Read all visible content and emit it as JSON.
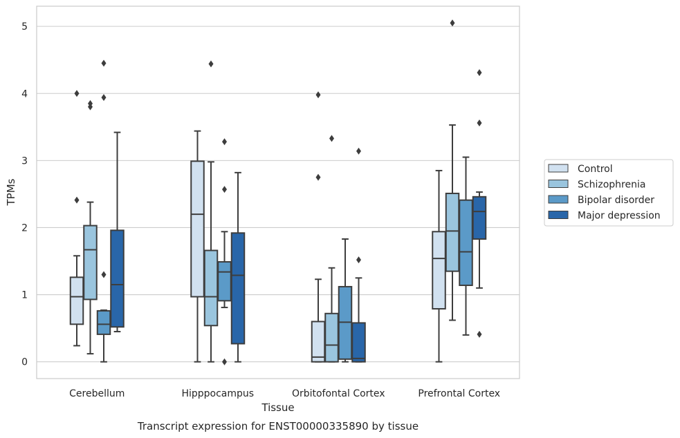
{
  "chart_data": {
    "type": "box",
    "title": "",
    "caption": "Transcript expression for ENST00000335890 by tissue",
    "xlabel": "Tissue",
    "ylabel": "TPMs",
    "ylim": [
      -0.25,
      5.3
    ],
    "yticks": [
      "0",
      "1",
      "2",
      "3",
      "4",
      "5"
    ],
    "grid": "horizontal",
    "legend_position": "right",
    "categories": [
      "Cerebellum",
      "Hipppocampus",
      "Orbitofontal Cortex",
      "Prefrontal Cortex"
    ],
    "series": [
      {
        "name": "Control",
        "color": "#d1e1f0",
        "boxes": [
          {
            "whisker_low": 0.24,
            "q1": 0.56,
            "median": 0.97,
            "q3": 1.26,
            "whisker_high": 1.58,
            "outliers": [
              2.41,
              4.0
            ]
          },
          {
            "whisker_low": 0.0,
            "q1": 0.97,
            "median": 2.2,
            "q3": 2.99,
            "whisker_high": 3.44,
            "outliers": []
          },
          {
            "whisker_low": 0.0,
            "q1": 0.0,
            "median": 0.07,
            "q3": 0.6,
            "whisker_high": 1.23,
            "outliers": [
              2.75,
              3.98
            ]
          },
          {
            "whisker_low": 0.0,
            "q1": 0.79,
            "median": 1.54,
            "q3": 1.94,
            "whisker_high": 2.85,
            "outliers": []
          }
        ]
      },
      {
        "name": "Schizophrenia",
        "color": "#9ac5de",
        "boxes": [
          {
            "whisker_low": 0.12,
            "q1": 0.93,
            "median": 1.67,
            "q3": 2.03,
            "whisker_high": 2.38,
            "outliers": [
              3.8,
              3.85
            ]
          },
          {
            "whisker_low": 0.0,
            "q1": 0.54,
            "median": 0.97,
            "q3": 1.66,
            "whisker_high": 2.98,
            "outliers": [
              4.44
            ]
          },
          {
            "whisker_low": 0.0,
            "q1": 0.0,
            "median": 0.25,
            "q3": 0.72,
            "whisker_high": 1.4,
            "outliers": [
              3.33
            ]
          },
          {
            "whisker_low": 0.62,
            "q1": 1.35,
            "median": 1.95,
            "q3": 2.51,
            "whisker_high": 3.53,
            "outliers": [
              5.05
            ]
          }
        ]
      },
      {
        "name": "Bipolar disorder",
        "color": "#5b9ac8",
        "boxes": [
          {
            "whisker_low": 0.0,
            "q1": 0.41,
            "median": 0.56,
            "q3": 0.76,
            "whisker_high": 0.77,
            "outliers": [
              1.3,
              3.94,
              4.45
            ]
          },
          {
            "whisker_low": 0.81,
            "q1": 0.91,
            "median": 1.34,
            "q3": 1.49,
            "whisker_high": 1.94,
            "outliers": [
              0.0,
              2.57,
              3.28
            ]
          },
          {
            "whisker_low": 0.0,
            "q1": 0.04,
            "median": 0.59,
            "q3": 1.12,
            "whisker_high": 1.83,
            "outliers": []
          },
          {
            "whisker_low": 0.4,
            "q1": 1.14,
            "median": 1.64,
            "q3": 2.41,
            "whisker_high": 3.05,
            "outliers": []
          }
        ]
      },
      {
        "name": "Major depression",
        "color": "#2966a9",
        "boxes": [
          {
            "whisker_low": 0.45,
            "q1": 0.52,
            "median": 1.15,
            "q3": 1.96,
            "whisker_high": 3.42,
            "outliers": []
          },
          {
            "whisker_low": 0.0,
            "q1": 0.27,
            "median": 1.29,
            "q3": 1.92,
            "whisker_high": 2.82,
            "outliers": []
          },
          {
            "whisker_low": 0.0,
            "q1": 0.0,
            "median": 0.05,
            "q3": 0.58,
            "whisker_high": 1.25,
            "outliers": [
              1.52,
              3.14
            ]
          },
          {
            "whisker_low": 1.1,
            "q1": 1.83,
            "median": 2.24,
            "q3": 2.46,
            "whisker_high": 2.53,
            "outliers": [
              0.41,
              3.56,
              4.31
            ]
          }
        ]
      }
    ]
  }
}
